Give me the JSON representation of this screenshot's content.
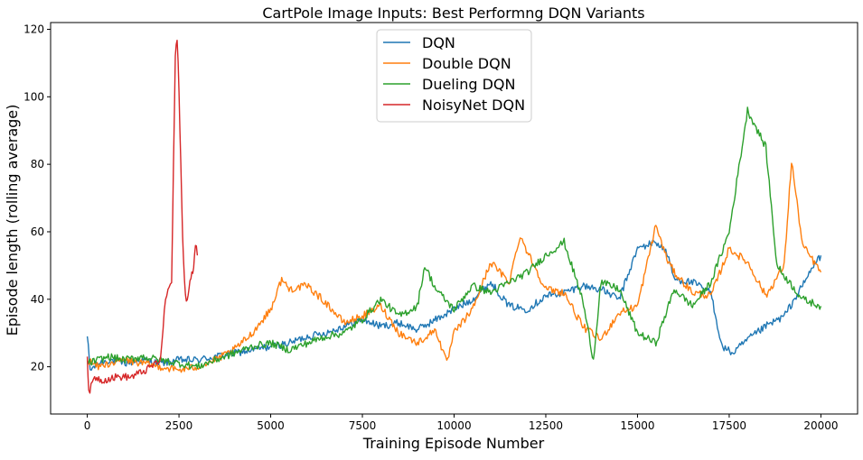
{
  "chart_data": {
    "type": "line",
    "title": "CartPole Image Inputs: Best Performng DQN Variants",
    "xlabel": "Training Episode Number",
    "ylabel": "Episode length (rolling average)",
    "xlim": [
      -1000,
      21000
    ],
    "ylim": [
      6,
      122
    ],
    "x_ticks": [
      0,
      2500,
      5000,
      7500,
      10000,
      12500,
      15000,
      17500,
      20000
    ],
    "y_ticks": [
      20,
      40,
      60,
      80,
      100,
      120
    ],
    "x_tick_labels": [
      "0",
      "2500",
      "5000",
      "7500",
      "10000",
      "12500",
      "15000",
      "17500",
      "20000"
    ],
    "y_tick_labels": [
      "20",
      "40",
      "60",
      "80",
      "100",
      "120"
    ],
    "grid": false,
    "legend_position": "top-center",
    "series": [
      {
        "name": "DQN",
        "color": "#1f77b4",
        "points": [
          [
            0,
            29
          ],
          [
            80,
            19
          ],
          [
            300,
            21
          ],
          [
            600,
            22
          ],
          [
            1000,
            21
          ],
          [
            1500,
            22
          ],
          [
            2000,
            21
          ],
          [
            2500,
            22
          ],
          [
            3000,
            22
          ],
          [
            3500,
            23
          ],
          [
            4000,
            24
          ],
          [
            4500,
            25
          ],
          [
            5000,
            26
          ],
          [
            5500,
            27
          ],
          [
            6000,
            29
          ],
          [
            6500,
            30
          ],
          [
            7000,
            32
          ],
          [
            7500,
            34
          ],
          [
            8000,
            32
          ],
          [
            8500,
            33
          ],
          [
            9000,
            31
          ],
          [
            9500,
            34
          ],
          [
            10000,
            37
          ],
          [
            10500,
            40
          ],
          [
            11000,
            45
          ],
          [
            11500,
            38
          ],
          [
            12000,
            37
          ],
          [
            12500,
            41
          ],
          [
            13000,
            42
          ],
          [
            13500,
            44
          ],
          [
            14000,
            43
          ],
          [
            14500,
            40
          ],
          [
            15000,
            55
          ],
          [
            15500,
            57
          ],
          [
            15800,
            54
          ],
          [
            16000,
            46
          ],
          [
            16500,
            45
          ],
          [
            17000,
            42
          ],
          [
            17300,
            26
          ],
          [
            17600,
            24
          ],
          [
            18000,
            28
          ],
          [
            18500,
            32
          ],
          [
            19000,
            35
          ],
          [
            19500,
            44
          ],
          [
            19800,
            50
          ],
          [
            20000,
            53
          ]
        ]
      },
      {
        "name": "Double DQN",
        "color": "#ff7f0e",
        "points": [
          [
            0,
            22
          ],
          [
            300,
            20
          ],
          [
            600,
            21
          ],
          [
            1000,
            22
          ],
          [
            1500,
            21
          ],
          [
            2000,
            20
          ],
          [
            2500,
            19
          ],
          [
            3000,
            20
          ],
          [
            3500,
            22
          ],
          [
            4000,
            25
          ],
          [
            4500,
            30
          ],
          [
            5000,
            37
          ],
          [
            5300,
            46
          ],
          [
            5500,
            43
          ],
          [
            6000,
            44
          ],
          [
            6500,
            39
          ],
          [
            7000,
            33
          ],
          [
            7500,
            35
          ],
          [
            8000,
            38
          ],
          [
            8500,
            30
          ],
          [
            9000,
            27
          ],
          [
            9500,
            31
          ],
          [
            9800,
            21
          ],
          [
            10000,
            30
          ],
          [
            10500,
            37
          ],
          [
            11000,
            51
          ],
          [
            11500,
            45
          ],
          [
            11800,
            59
          ],
          [
            12000,
            54
          ],
          [
            12500,
            43
          ],
          [
            13000,
            42
          ],
          [
            13500,
            32
          ],
          [
            14000,
            28
          ],
          [
            14500,
            36
          ],
          [
            15000,
            38
          ],
          [
            15500,
            62
          ],
          [
            15800,
            52
          ],
          [
            16000,
            48
          ],
          [
            16500,
            42
          ],
          [
            17000,
            41
          ],
          [
            17500,
            55
          ],
          [
            18000,
            51
          ],
          [
            18500,
            41
          ],
          [
            19000,
            50
          ],
          [
            19200,
            81
          ],
          [
            19500,
            56
          ],
          [
            20000,
            48
          ]
        ]
      },
      {
        "name": "Dueling DQN",
        "color": "#2ca02c",
        "points": [
          [
            0,
            21
          ],
          [
            300,
            22
          ],
          [
            600,
            23
          ],
          [
            1000,
            22
          ],
          [
            1500,
            23
          ],
          [
            2000,
            22
          ],
          [
            2500,
            21
          ],
          [
            3000,
            20
          ],
          [
            3500,
            22
          ],
          [
            4000,
            24
          ],
          [
            4500,
            26
          ],
          [
            5000,
            27
          ],
          [
            5500,
            25
          ],
          [
            6000,
            27
          ],
          [
            6500,
            29
          ],
          [
            7000,
            30
          ],
          [
            7500,
            34
          ],
          [
            8000,
            40
          ],
          [
            8500,
            35
          ],
          [
            9000,
            38
          ],
          [
            9200,
            50
          ],
          [
            9500,
            43
          ],
          [
            10000,
            37
          ],
          [
            10500,
            44
          ],
          [
            11000,
            42
          ],
          [
            11500,
            45
          ],
          [
            12000,
            48
          ],
          [
            12500,
            53
          ],
          [
            13000,
            57
          ],
          [
            13500,
            40
          ],
          [
            13800,
            22
          ],
          [
            14000,
            45
          ],
          [
            14500,
            43
          ],
          [
            15000,
            30
          ],
          [
            15500,
            27
          ],
          [
            16000,
            43
          ],
          [
            16500,
            38
          ],
          [
            17000,
            45
          ],
          [
            17500,
            60
          ],
          [
            18000,
            96
          ],
          [
            18500,
            85
          ],
          [
            18800,
            50
          ],
          [
            19000,
            47
          ],
          [
            19500,
            40
          ],
          [
            20000,
            38
          ]
        ]
      },
      {
        "name": "NoisyNet DQN",
        "color": "#d62728",
        "points": [
          [
            0,
            23
          ],
          [
            40,
            12
          ],
          [
            200,
            17
          ],
          [
            400,
            16
          ],
          [
            800,
            17
          ],
          [
            1200,
            17
          ],
          [
            1600,
            19
          ],
          [
            2000,
            22
          ],
          [
            2100,
            37
          ],
          [
            2200,
            43
          ],
          [
            2300,
            45
          ],
          [
            2350,
            80
          ],
          [
            2400,
            112
          ],
          [
            2450,
            117
          ],
          [
            2500,
            102
          ],
          [
            2550,
            80
          ],
          [
            2600,
            58
          ],
          [
            2650,
            45
          ],
          [
            2700,
            40
          ],
          [
            2750,
            41
          ],
          [
            2800,
            45
          ],
          [
            2850,
            47
          ],
          [
            2900,
            50
          ],
          [
            2950,
            57
          ],
          [
            3000,
            53
          ]
        ]
      }
    ]
  }
}
